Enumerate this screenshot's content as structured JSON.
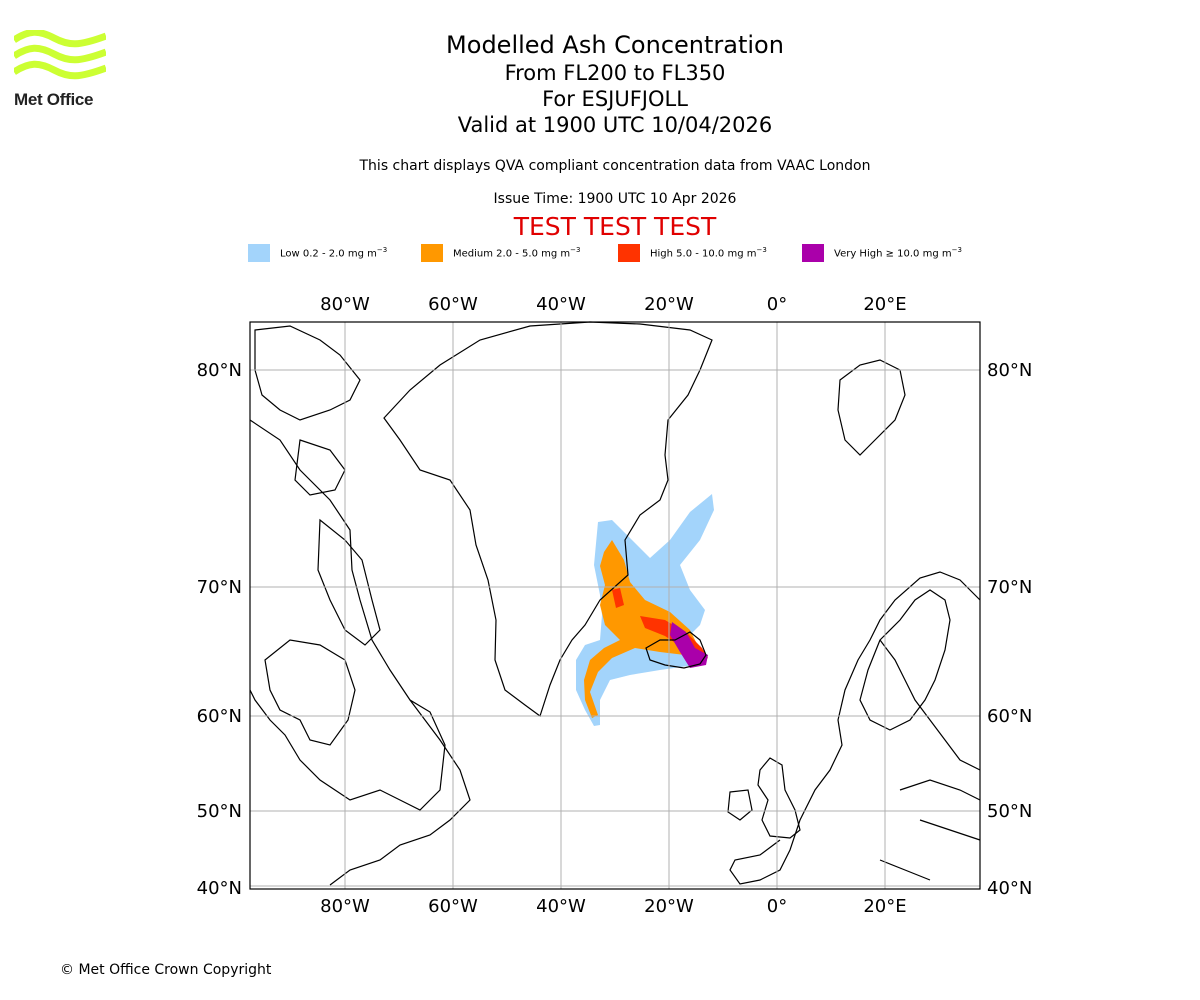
{
  "logo": {
    "text": "Met Office",
    "color": "#ccff33"
  },
  "title": {
    "main": "Modelled Ash Concentration",
    "levels": "From FL200 to FL350",
    "volcano": "For ESJUFJOLL",
    "valid": "Valid at 1900 UTC 10/04/2026"
  },
  "subtitle": "This chart displays QVA compliant concentration data from VAAC London",
  "issue_time": "Issue Time: 1900 UTC 10 Apr 2026",
  "test_banner": "TEST TEST TEST",
  "legend": [
    {
      "label": "Low 0.2 - 2.0 mg m",
      "sup": "−3",
      "color": "#a3d4fb"
    },
    {
      "label": "Medium 2.0 - 5.0 mg m",
      "sup": "−3",
      "color": "#ff9800"
    },
    {
      "label": "High 5.0 - 10.0 mg m",
      "sup": "−3",
      "color": "#ff3300"
    },
    {
      "label": "Very High ≥ 10.0 mg m",
      "sup": "−3",
      "color": "#aa00aa"
    }
  ],
  "axes": {
    "lon_labels": [
      "80°W",
      "60°W",
      "40°W",
      "20°W",
      "0°",
      "20°E"
    ],
    "lat_labels": [
      "80°N",
      "70°N",
      "60°N",
      "50°N",
      "40°N"
    ]
  },
  "copyright": "© Met Office Crown Copyright"
}
